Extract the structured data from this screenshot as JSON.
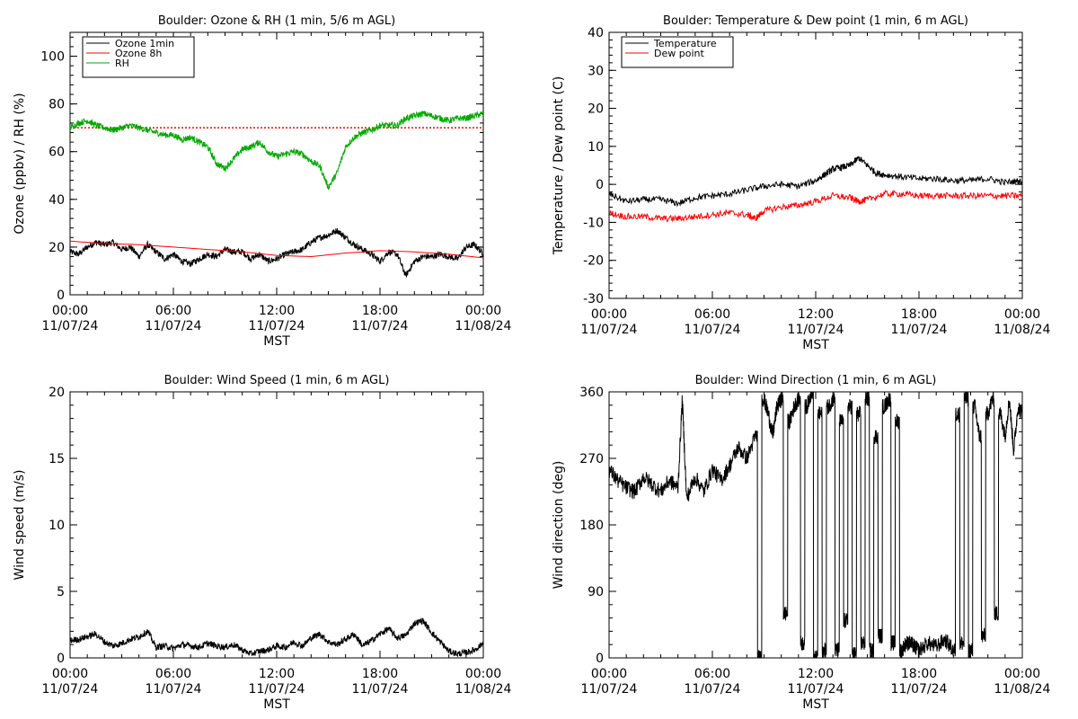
{
  "chart_data": [
    {
      "type": "line",
      "title": "Boulder: Ozone & RH (1 min, 5/6 m AGL)",
      "xlabel": "MST",
      "ylabel": "Ozone (ppbv) / RH (%)",
      "xlim": [
        "00:00 11/07/24",
        "00:00 11/08/24"
      ],
      "x_ticks": [
        {
          "time": "00:00",
          "date": "11/07/24"
        },
        {
          "time": "06:00",
          "date": "11/07/24"
        },
        {
          "time": "12:00",
          "date": "11/07/24"
        },
        {
          "time": "18:00",
          "date": "11/07/24"
        },
        {
          "time": "00:00",
          "date": "11/08/24"
        }
      ],
      "ylim": [
        0,
        110
      ],
      "y_ticks": [
        0,
        20,
        40,
        60,
        80,
        100
      ],
      "legend": {
        "placement": "top-left",
        "entries": [
          "Ozone 1min",
          "Ozone 8h",
          "RH"
        ]
      },
      "reference_line": {
        "y": 70,
        "style": "dotted",
        "color": "#ff0000"
      },
      "series": [
        {
          "name": "Ozone 1min",
          "color": "#000000",
          "x_hours": [
            0,
            0.5,
            1,
            1.5,
            2,
            2.5,
            3,
            3.5,
            4,
            4.5,
            5,
            5.5,
            6,
            6.5,
            7,
            7.5,
            8,
            8.5,
            9,
            9.5,
            10,
            10.5,
            11,
            11.5,
            12,
            12.5,
            13,
            13.5,
            14,
            14.5,
            15,
            15.5,
            16,
            16.5,
            17,
            17.5,
            18,
            18.5,
            19,
            19.5,
            20,
            20.5,
            21,
            21.5,
            22,
            22.5,
            23,
            23.5,
            24
          ],
          "values": [
            18,
            17,
            20,
            22,
            21,
            22,
            19,
            20,
            16,
            21,
            18,
            15,
            17,
            14,
            13,
            15,
            17,
            16,
            19,
            18,
            18,
            15,
            17,
            14,
            15,
            17,
            18,
            19,
            22,
            24,
            25,
            27,
            24,
            21,
            19,
            17,
            14,
            18,
            17,
            8,
            14,
            16,
            16,
            17,
            16,
            15,
            20,
            21,
            17
          ]
        },
        {
          "name": "Ozone 8h",
          "color": "#ff0000",
          "x_hours": [
            0,
            2,
            4,
            6,
            8,
            10,
            12,
            14,
            16,
            18,
            20,
            22,
            24
          ],
          "values": [
            22.5,
            21.5,
            21,
            20,
            19,
            18,
            16.5,
            16,
            17.5,
            18.5,
            18,
            17,
            15.5
          ]
        },
        {
          "name": "RH",
          "color": "#00aa00",
          "x_hours": [
            0,
            0.5,
            1,
            1.5,
            2,
            2.5,
            3,
            3.5,
            4,
            4.5,
            5,
            5.5,
            6,
            6.5,
            7,
            7.5,
            8,
            8.5,
            9,
            9.5,
            10,
            10.5,
            11,
            11.5,
            12,
            12.5,
            13,
            13.5,
            14,
            14.5,
            15,
            15.5,
            16,
            16.5,
            17,
            17.5,
            18,
            18.5,
            19,
            19.5,
            20,
            20.5,
            21,
            21.5,
            22,
            22.5,
            23,
            23.5,
            24
          ],
          "values": [
            70,
            72,
            73,
            71,
            70,
            69,
            70,
            71,
            70,
            69,
            68,
            67,
            67,
            65,
            66,
            64,
            62,
            55,
            53,
            57,
            61,
            62,
            64,
            60,
            58,
            59,
            60,
            59,
            56,
            54,
            45,
            51,
            62,
            66,
            68,
            69,
            71,
            71,
            71,
            74,
            75,
            76,
            75,
            74,
            73,
            74,
            74,
            75,
            76
          ]
        }
      ]
    },
    {
      "type": "line",
      "title": "Boulder: Temperature & Dew point (1 min, 6 m AGL)",
      "xlabel": "MST",
      "ylabel": "Temperature / Dew point (C)",
      "xlim": [
        "00:00 11/07/24",
        "00:00 11/08/24"
      ],
      "x_ticks": [
        {
          "time": "00:00",
          "date": "11/07/24"
        },
        {
          "time": "06:00",
          "date": "11/07/24"
        },
        {
          "time": "12:00",
          "date": "11/07/24"
        },
        {
          "time": "18:00",
          "date": "11/07/24"
        },
        {
          "time": "00:00",
          "date": "11/08/24"
        }
      ],
      "ylim": [
        -30,
        40
      ],
      "y_ticks": [
        -30,
        -20,
        -10,
        0,
        10,
        20,
        30,
        40
      ],
      "legend": {
        "placement": "top-left",
        "entries": [
          "Temperature",
          "Dew point"
        ]
      },
      "series": [
        {
          "name": "Temperature",
          "color": "#000000",
          "x_hours": [
            0,
            1,
            2,
            3,
            4,
            5,
            6,
            7,
            8,
            9,
            10,
            11,
            12,
            12.5,
            13,
            13.5,
            14,
            14.5,
            15,
            15.5,
            16,
            17,
            18,
            19,
            20,
            21,
            22,
            23,
            24
          ],
          "values": [
            -2.5,
            -4.5,
            -4,
            -4,
            -5,
            -3.5,
            -3,
            -2.5,
            -1.5,
            -0.5,
            0,
            -0.5,
            1,
            2.5,
            4,
            4.5,
            5,
            7,
            5,
            3,
            2.5,
            2,
            1.5,
            1.5,
            1,
            1,
            1.5,
            0.5,
            1
          ]
        },
        {
          "name": "Dew point",
          "color": "#ff0000",
          "x_hours": [
            0,
            1,
            2,
            3,
            4,
            5,
            6,
            7,
            8,
            8.5,
            9,
            10,
            11,
            12,
            13,
            14,
            14.5,
            15,
            16,
            17,
            18,
            19,
            20,
            21,
            22,
            23,
            24
          ],
          "values": [
            -7.5,
            -8.5,
            -8.5,
            -9,
            -9,
            -8.5,
            -8,
            -7.5,
            -8,
            -9,
            -7,
            -6,
            -5.5,
            -4.5,
            -3,
            -3.5,
            -4.5,
            -4,
            -2.5,
            -2.5,
            -3,
            -3,
            -3,
            -3,
            -3,
            -3,
            -3
          ]
        }
      ]
    },
    {
      "type": "line",
      "title": "Boulder: Wind Speed (1 min, 6 m AGL)",
      "xlabel": "MST",
      "ylabel": "Wind speed (m/s)",
      "xlim": [
        "00:00 11/07/24",
        "00:00 11/08/24"
      ],
      "x_ticks": [
        {
          "time": "00:00",
          "date": "11/07/24"
        },
        {
          "time": "06:00",
          "date": "11/07/24"
        },
        {
          "time": "12:00",
          "date": "11/07/24"
        },
        {
          "time": "18:00",
          "date": "11/07/24"
        },
        {
          "time": "00:00",
          "date": "11/08/24"
        }
      ],
      "ylim": [
        0,
        20
      ],
      "y_ticks": [
        0,
        5,
        10,
        15,
        20
      ],
      "series": [
        {
          "name": "",
          "color": "#000000",
          "x_hours": [
            0,
            0.5,
            1,
            1.5,
            2,
            2.5,
            3,
            3.5,
            4,
            4.5,
            5,
            5.5,
            6,
            6.5,
            7,
            7.5,
            8,
            8.5,
            9,
            9.5,
            10,
            10.5,
            11,
            11.5,
            12,
            12.5,
            13,
            13.5,
            14,
            14.5,
            15,
            15.5,
            16,
            16.5,
            17,
            17.5,
            18,
            18.5,
            19,
            19.5,
            20,
            20.5,
            21,
            21.5,
            22,
            22.5,
            23,
            23.5,
            24
          ],
          "values": [
            1.3,
            1.4,
            1.6,
            1.8,
            1.2,
            0.9,
            1.1,
            1.4,
            1.6,
            2.0,
            0.8,
            0.9,
            0.7,
            1.0,
            0.9,
            0.8,
            1.1,
            0.9,
            0.8,
            1.0,
            0.6,
            0.3,
            0.5,
            0.6,
            0.9,
            0.8,
            1.2,
            0.9,
            1.5,
            1.8,
            1.2,
            1.0,
            1.4,
            1.8,
            0.9,
            1.3,
            1.8,
            2.2,
            1.5,
            1.7,
            2.6,
            2.8,
            1.9,
            1.2,
            0.5,
            0.3,
            0.4,
            0.6,
            1.1
          ]
        }
      ]
    },
    {
      "type": "line",
      "title": "Boulder: Wind Direction (1 min, 6 m AGL)",
      "xlabel": "MST",
      "ylabel": "Wind direction (deg)",
      "xlim": [
        "00:00 11/07/24",
        "00:00 11/08/24"
      ],
      "x_ticks": [
        {
          "time": "00:00",
          "date": "11/07/24"
        },
        {
          "time": "06:00",
          "date": "11/07/24"
        },
        {
          "time": "12:00",
          "date": "11/07/24"
        },
        {
          "time": "18:00",
          "date": "11/07/24"
        },
        {
          "time": "00:00",
          "date": "11/08/24"
        }
      ],
      "ylim": [
        0,
        360
      ],
      "y_ticks": [
        0,
        90,
        180,
        270,
        360
      ],
      "series": [
        {
          "name": "",
          "color": "#000000",
          "x_hours": [
            0,
            0.5,
            1,
            1.5,
            2,
            2.5,
            3,
            3.5,
            4,
            4.25,
            4.5,
            5,
            5.5,
            6,
            6.5,
            7,
            7.5,
            8,
            8.5,
            8.75,
            9,
            9.25,
            9.5,
            9.75,
            10,
            10.25,
            10.5,
            10.75,
            11,
            11.25,
            11.5,
            11.75,
            12,
            12.25,
            12.5,
            12.75,
            13,
            13.25,
            13.5,
            13.75,
            14,
            14.25,
            14.5,
            14.75,
            15,
            15.25,
            15.5,
            15.75,
            16,
            16.25,
            16.5,
            16.75,
            17,
            17.25,
            17.5,
            17.75,
            18,
            18.5,
            19,
            19.5,
            20,
            20.25,
            20.5,
            20.75,
            21,
            21.25,
            21.5,
            21.75,
            22,
            22.25,
            22.5,
            22.75,
            23,
            23.25,
            23.5,
            23.75,
            24
          ],
          "values": [
            255,
            240,
            230,
            225,
            245,
            235,
            225,
            240,
            230,
            350,
            215,
            245,
            225,
            255,
            240,
            260,
            285,
            270,
            300,
            0,
            350,
            330,
            300,
            340,
            350,
            60,
            320,
            340,
            350,
            20,
            340,
            360,
            0,
            330,
            10,
            340,
            350,
            10,
            320,
            50,
            340,
            5,
            330,
            20,
            350,
            10,
            300,
            30,
            340,
            350,
            20,
            320,
            10,
            20,
            20,
            15,
            10,
            20,
            15,
            25,
            10,
            330,
            20,
            350,
            10,
            340,
            300,
            30,
            330,
            350,
            60,
            330,
            300,
            350,
            280,
            340,
            330
          ]
        }
      ]
    }
  ]
}
